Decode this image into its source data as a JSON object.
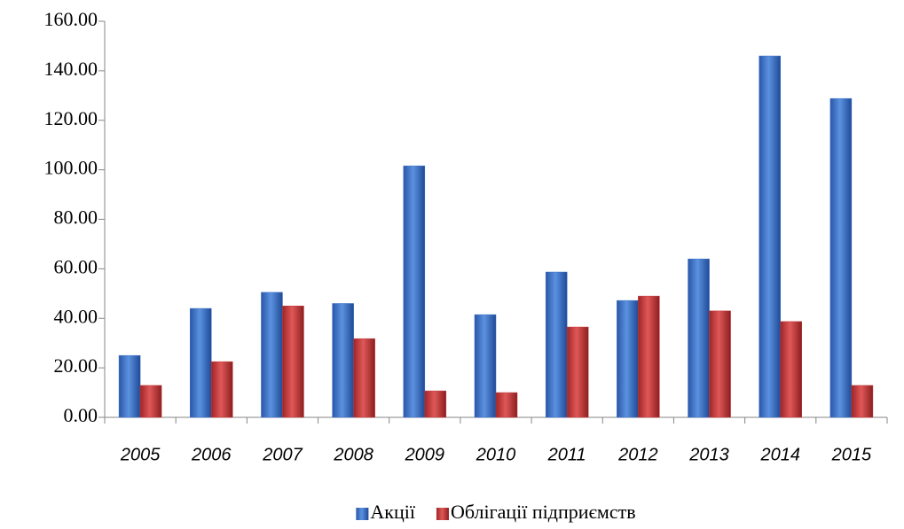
{
  "chart_data": {
    "type": "bar",
    "categories": [
      "2005",
      "2006",
      "2007",
      "2008",
      "2009",
      "2010",
      "2011",
      "2012",
      "2013",
      "2014",
      "2015"
    ],
    "series": [
      {
        "name": "Акції",
        "color": "#3a6fc4",
        "values": [
          25.0,
          44.0,
          50.5,
          46.0,
          101.6,
          41.5,
          58.7,
          47.2,
          64.0,
          146.0,
          128.8
        ]
      },
      {
        "name": "Облігації підприємств",
        "color": "#c0393a",
        "values": [
          12.9,
          22.5,
          45.0,
          31.8,
          10.7,
          10.0,
          36.5,
          49.0,
          43.0,
          38.7,
          12.9
        ]
      }
    ],
    "ylim": [
      0,
      160
    ],
    "yticks": [
      {
        "value": 0,
        "label": "0.00"
      },
      {
        "value": 20,
        "label": "20.00"
      },
      {
        "value": 40,
        "label": "40.00"
      },
      {
        "value": 60,
        "label": "60.00"
      },
      {
        "value": 80,
        "label": "80.00"
      },
      {
        "value": 100,
        "label": "100.00"
      },
      {
        "value": 120,
        "label": "120.00"
      },
      {
        "value": 140,
        "label": "140.00"
      },
      {
        "value": 160,
        "label": "160.00"
      }
    ],
    "grid": false,
    "legend": "bottom"
  }
}
